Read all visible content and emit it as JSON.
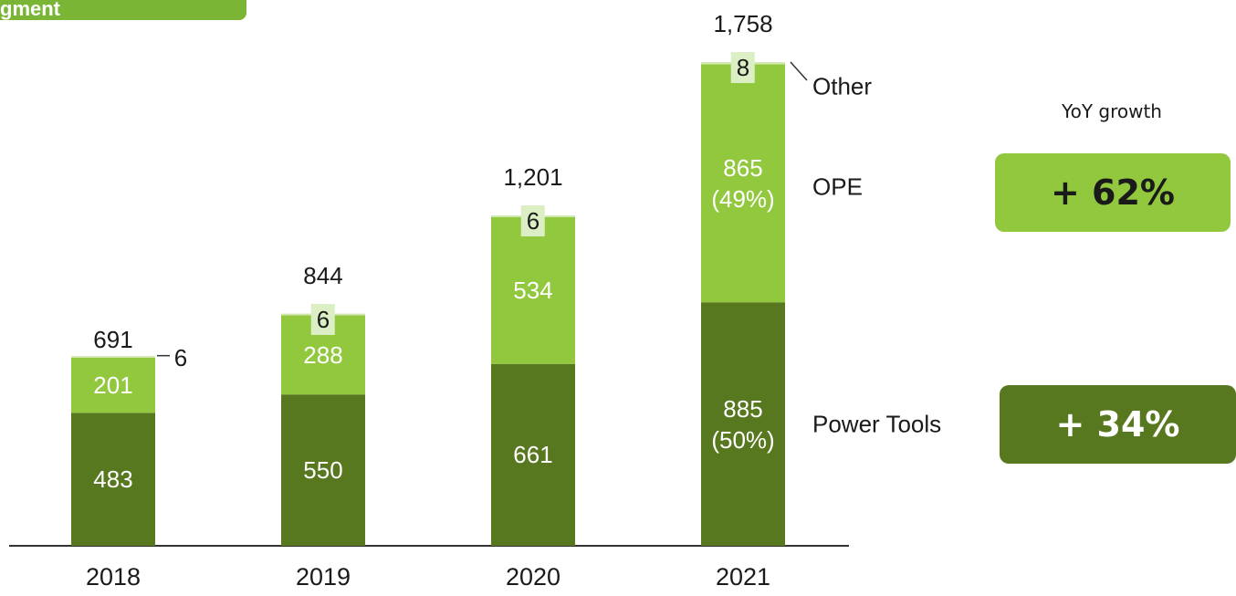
{
  "tab": "gment",
  "chart_data": {
    "type": "stacked_bar",
    "categories": [
      "2018",
      "2019",
      "2020",
      "2021"
    ],
    "series": [
      {
        "name": "Power Tools",
        "color": "#58781f",
        "values": [
          483,
          550,
          661,
          885
        ],
        "value_labels": [
          "483",
          "550",
          "661",
          "885\n(50%)"
        ]
      },
      {
        "name": "OPE",
        "color": "#92c83e",
        "values": [
          201,
          288,
          534,
          865
        ],
        "value_labels": [
          "201",
          "288",
          "534",
          "865\n(49%)"
        ]
      },
      {
        "name": "Other",
        "color": "#d4e8b4",
        "values": [
          6,
          6,
          6,
          8
        ]
      }
    ],
    "totals": [
      691,
      844,
      1201,
      1758
    ],
    "total_labels": [
      "691",
      "844",
      "1,201",
      "1,758"
    ],
    "yoy_title": "YoY growth",
    "yoy": [
      {
        "label": "+ 62%",
        "color": "#92c83e"
      },
      {
        "label": "+ 34%",
        "color": "#58781f"
      }
    ]
  }
}
